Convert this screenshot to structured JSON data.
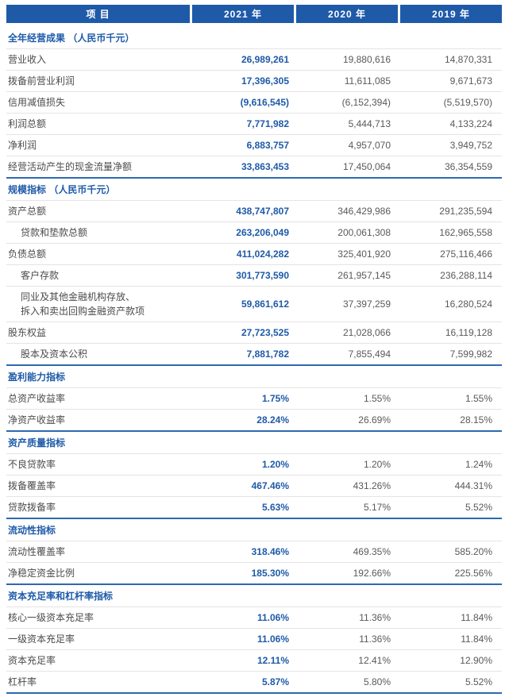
{
  "header": {
    "item": "项 目",
    "y2021": "2021 年",
    "y2020": "2020 年",
    "y2019": "2019 年"
  },
  "sections": [
    {
      "title": "全年经营成果 （人民币千元）",
      "rows": [
        {
          "label": "营业收入",
          "indent": false,
          "values": [
            "26,989,261",
            "19,880,616",
            "14,870,331"
          ]
        },
        {
          "label": "拨备前营业利润",
          "indent": false,
          "values": [
            "17,396,305",
            "11,611,085",
            "9,671,673"
          ]
        },
        {
          "label": "信用减值损失",
          "indent": false,
          "values": [
            "(9,616,545)",
            "(6,152,394)",
            "(5,519,570)"
          ]
        },
        {
          "label": "利润总额",
          "indent": false,
          "values": [
            "7,771,982",
            "5,444,713",
            "4,133,224"
          ]
        },
        {
          "label": "净利润",
          "indent": false,
          "values": [
            "6,883,757",
            "4,957,070",
            "3,949,752"
          ]
        },
        {
          "label": "经营活动产生的现金流量净额",
          "indent": false,
          "values": [
            "33,863,453",
            "17,450,064",
            "36,354,559"
          ]
        }
      ]
    },
    {
      "title": "规模指标 （人民币千元）",
      "rows": [
        {
          "label": "资产总额",
          "indent": false,
          "values": [
            "438,747,807",
            "346,429,986",
            "291,235,594"
          ]
        },
        {
          "label": "贷款和垫款总额",
          "indent": true,
          "values": [
            "263,206,049",
            "200,061,308",
            "162,965,558"
          ]
        },
        {
          "label": "负债总额",
          "indent": false,
          "values": [
            "411,024,282",
            "325,401,920",
            "275,116,466"
          ]
        },
        {
          "label": "客户存款",
          "indent": true,
          "values": [
            "301,773,590",
            "261,957,145",
            "236,288,114"
          ]
        },
        {
          "label": "同业及其他金融机构存放、\n拆入和卖出回购金融资产款项",
          "indent": true,
          "values": [
            "59,861,612",
            "37,397,259",
            "16,280,524"
          ]
        },
        {
          "label": "股东权益",
          "indent": false,
          "values": [
            "27,723,525",
            "21,028,066",
            "16,119,128"
          ]
        },
        {
          "label": "股本及资本公积",
          "indent": true,
          "values": [
            "7,881,782",
            "7,855,494",
            "7,599,982"
          ]
        }
      ]
    },
    {
      "title": "盈利能力指标",
      "rows": [
        {
          "label": "总资产收益率",
          "indent": false,
          "values": [
            "1.75%",
            "1.55%",
            "1.55%"
          ]
        },
        {
          "label": "净资产收益率",
          "indent": false,
          "values": [
            "28.24%",
            "26.69%",
            "28.15%"
          ]
        }
      ]
    },
    {
      "title": "资产质量指标",
      "rows": [
        {
          "label": "不良贷款率",
          "indent": false,
          "values": [
            "1.20%",
            "1.20%",
            "1.24%"
          ]
        },
        {
          "label": "拨备覆盖率",
          "indent": false,
          "values": [
            "467.46%",
            "431.26%",
            "444.31%"
          ]
        },
        {
          "label": "贷款拨备率",
          "indent": false,
          "values": [
            "5.63%",
            "5.17%",
            "5.52%"
          ]
        }
      ]
    },
    {
      "title": "流动性指标",
      "rows": [
        {
          "label": "流动性覆盖率",
          "indent": false,
          "values": [
            "318.46%",
            "469.35%",
            "585.20%"
          ]
        },
        {
          "label": "净稳定资金比例",
          "indent": false,
          "values": [
            "185.30%",
            "192.66%",
            "225.56%"
          ]
        }
      ]
    },
    {
      "title": "资本充足率和杠杆率指标",
      "rows": [
        {
          "label": "核心一级资本充足率",
          "indent": false,
          "values": [
            "11.06%",
            "11.36%",
            "11.84%"
          ]
        },
        {
          "label": "一级资本充足率",
          "indent": false,
          "values": [
            "11.06%",
            "11.36%",
            "11.84%"
          ]
        },
        {
          "label": "资本充足率",
          "indent": false,
          "values": [
            "12.11%",
            "12.41%",
            "12.90%"
          ]
        },
        {
          "label": "杠杆率",
          "indent": false,
          "values": [
            "5.87%",
            "5.80%",
            "5.52%"
          ]
        }
      ]
    }
  ],
  "colors": {
    "primary_blue": "#1E5AA8",
    "section_border_blue": "#2E69B0",
    "value_text": "#595959",
    "label_text": "#4B4B4B",
    "row_border": "#E4E4E4",
    "header_text": "#FFFFFF"
  }
}
